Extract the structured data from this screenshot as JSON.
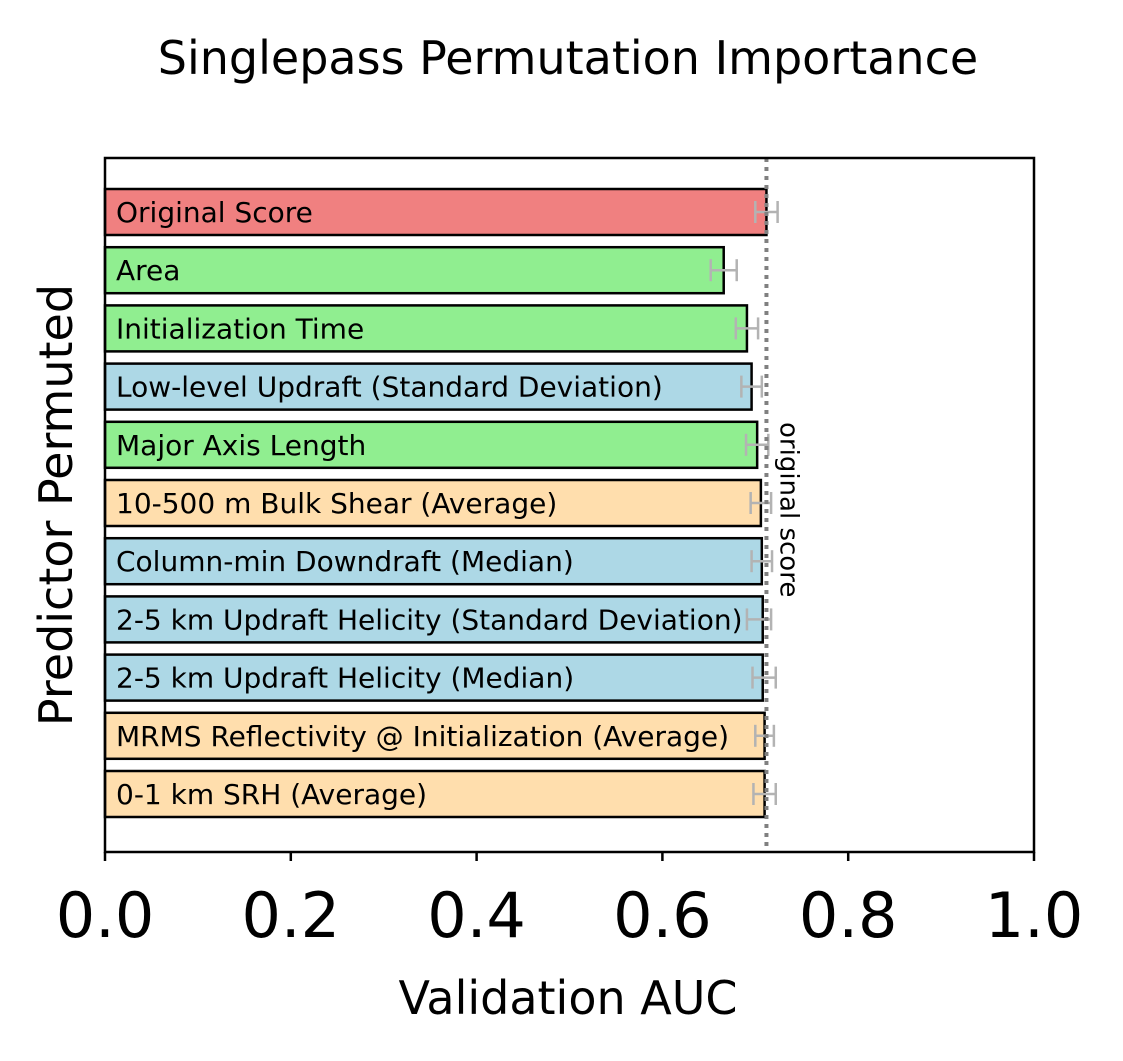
{
  "chart_data": {
    "type": "bar",
    "orientation": "horizontal",
    "title": "Singlepass Permutation Importance",
    "xlabel": "Validation AUC",
    "ylabel": "Predictor Permuted",
    "xlim": [
      0.0,
      1.0
    ],
    "xticks": [
      "0.0",
      "0.2",
      "0.4",
      "0.6",
      "0.8",
      "1.0"
    ],
    "grid": false,
    "reference_line": {
      "label": "original score",
      "value": 0.712,
      "style": "dotted",
      "color": "#808080"
    },
    "colors": {
      "original": "#f08080",
      "green": "#90ee90",
      "blue": "#add8e6",
      "orange": "#ffdead",
      "error_bar": "#b3b3b3"
    },
    "bars": [
      {
        "label": "Original Score",
        "value": 0.712,
        "err_low": 0.7,
        "err_high": 0.724,
        "color_key": "original"
      },
      {
        "label": "Area",
        "value": 0.666,
        "err_low": 0.652,
        "err_high": 0.68,
        "color_key": "green"
      },
      {
        "label": "Initialization Time",
        "value": 0.691,
        "err_low": 0.679,
        "err_high": 0.703,
        "color_key": "green"
      },
      {
        "label": "Low-level Updraft (Standard Deviation)",
        "value": 0.696,
        "err_low": 0.685,
        "err_high": 0.707,
        "color_key": "blue"
      },
      {
        "label": "Major Axis Length",
        "value": 0.702,
        "err_low": 0.69,
        "err_high": 0.714,
        "color_key": "green"
      },
      {
        "label": "10-500 m Bulk Shear (Average)",
        "value": 0.706,
        "err_low": 0.695,
        "err_high": 0.717,
        "color_key": "orange"
      },
      {
        "label": "Column-min Downdraft (Median)",
        "value": 0.707,
        "err_low": 0.696,
        "err_high": 0.718,
        "color_key": "blue"
      },
      {
        "label": "2-5 km Updraft Helicity (Standard Deviation)",
        "value": 0.708,
        "err_low": 0.691,
        "err_high": 0.717,
        "color_key": "blue"
      },
      {
        "label": "2-5 km Updraft Helicity (Median)",
        "value": 0.708,
        "err_low": 0.697,
        "err_high": 0.722,
        "color_key": "blue"
      },
      {
        "label": "MRMS Reflectivity @ Initialization (Average)",
        "value": 0.71,
        "err_low": 0.7,
        "err_high": 0.72,
        "color_key": "orange"
      },
      {
        "label": "0-1 km SRH (Average)",
        "value": 0.71,
        "err_low": 0.698,
        "err_high": 0.722,
        "color_key": "orange"
      }
    ]
  }
}
